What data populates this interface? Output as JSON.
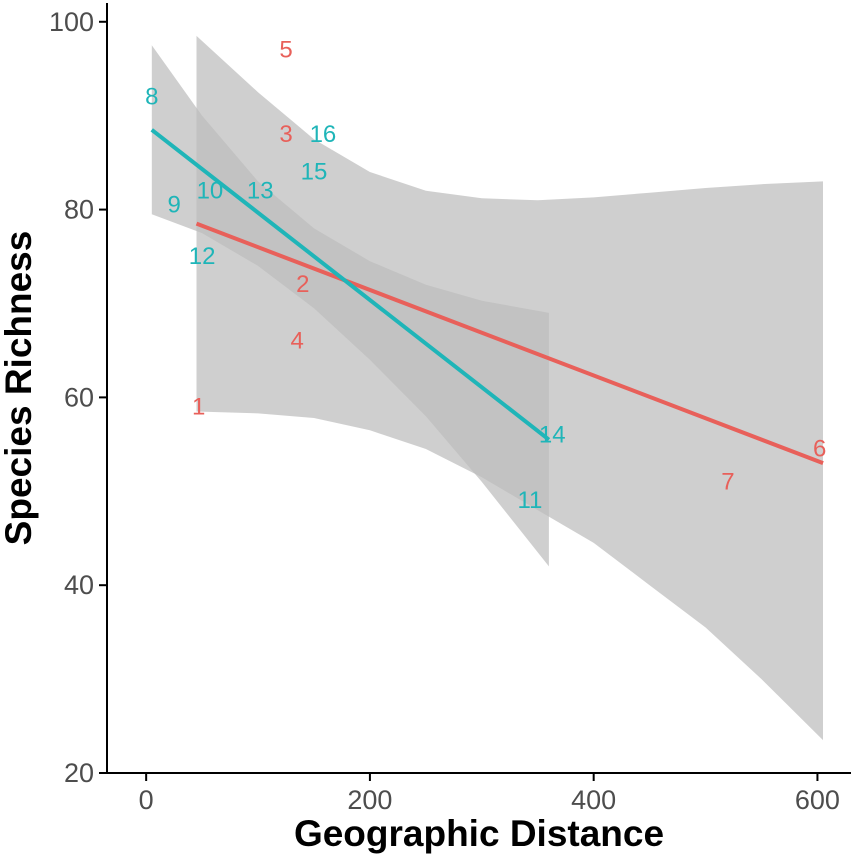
{
  "chart_data": {
    "type": "scatter",
    "title": "",
    "xlabel": "Geographic Distance",
    "ylabel": "Species Richness",
    "xlim": [
      -35,
      630
    ],
    "ylim": [
      20,
      102
    ],
    "x_ticks": [
      0,
      200,
      400,
      600
    ],
    "y_ticks": [
      20,
      40,
      60,
      80,
      100
    ],
    "grid": false,
    "legend": "none",
    "colors": {
      "series_a": "#e8605a",
      "series_b": "#1fb5b8",
      "band": "#bdbdbd"
    },
    "series": [
      {
        "color_key": "series_a",
        "points": [
          {
            "label": "1",
            "x": 47,
            "y": 59
          },
          {
            "label": "2",
            "x": 140,
            "y": 72
          },
          {
            "label": "3",
            "x": 125,
            "y": 88
          },
          {
            "label": "4",
            "x": 135,
            "y": 66
          },
          {
            "label": "5",
            "x": 125,
            "y": 97
          },
          {
            "label": "6",
            "x": 602,
            "y": 54.5
          },
          {
            "label": "7",
            "x": 520,
            "y": 51
          }
        ],
        "fit_line": [
          [
            45,
            78.5
          ],
          [
            605,
            53
          ]
        ],
        "band_upper": [
          [
            45,
            98.5
          ],
          [
            100,
            92.5
          ],
          [
            150,
            87.5
          ],
          [
            200,
            84
          ],
          [
            250,
            82
          ],
          [
            300,
            81.2
          ],
          [
            350,
            81
          ],
          [
            400,
            81.3
          ],
          [
            450,
            81.8
          ],
          [
            500,
            82.3
          ],
          [
            550,
            82.7
          ],
          [
            605,
            83
          ]
        ],
        "band_lower": [
          [
            45,
            58.5
          ],
          [
            100,
            58.3
          ],
          [
            150,
            57.8
          ],
          [
            200,
            56.5
          ],
          [
            250,
            54.5
          ],
          [
            300,
            51.5
          ],
          [
            350,
            48
          ],
          [
            400,
            44.5
          ],
          [
            450,
            40
          ],
          [
            500,
            35.5
          ],
          [
            550,
            30
          ],
          [
            605,
            23.5
          ]
        ]
      },
      {
        "color_key": "series_b",
        "points": [
          {
            "label": "8",
            "x": 5,
            "y": 92
          },
          {
            "label": "9",
            "x": 25,
            "y": 80.5
          },
          {
            "label": "10",
            "x": 57,
            "y": 82
          },
          {
            "label": "11",
            "x": 343,
            "y": 49
          },
          {
            "label": "12",
            "x": 50,
            "y": 75
          },
          {
            "label": "13",
            "x": 102,
            "y": 82
          },
          {
            "label": "14",
            "x": 363,
            "y": 56
          },
          {
            "label": "15",
            "x": 150,
            "y": 84
          },
          {
            "label": "16",
            "x": 158,
            "y": 88
          }
        ],
        "fit_line": [
          [
            5,
            88.5
          ],
          [
            360,
            55.5
          ]
        ],
        "band_upper": [
          [
            5,
            97.5
          ],
          [
            50,
            90
          ],
          [
            100,
            83
          ],
          [
            150,
            78
          ],
          [
            200,
            74.5
          ],
          [
            250,
            72
          ],
          [
            300,
            70.3
          ],
          [
            360,
            69
          ]
        ],
        "band_lower": [
          [
            5,
            79.5
          ],
          [
            50,
            77.5
          ],
          [
            100,
            74
          ],
          [
            150,
            69.5
          ],
          [
            200,
            64
          ],
          [
            250,
            58
          ],
          [
            300,
            51
          ],
          [
            360,
            42
          ]
        ]
      }
    ]
  }
}
